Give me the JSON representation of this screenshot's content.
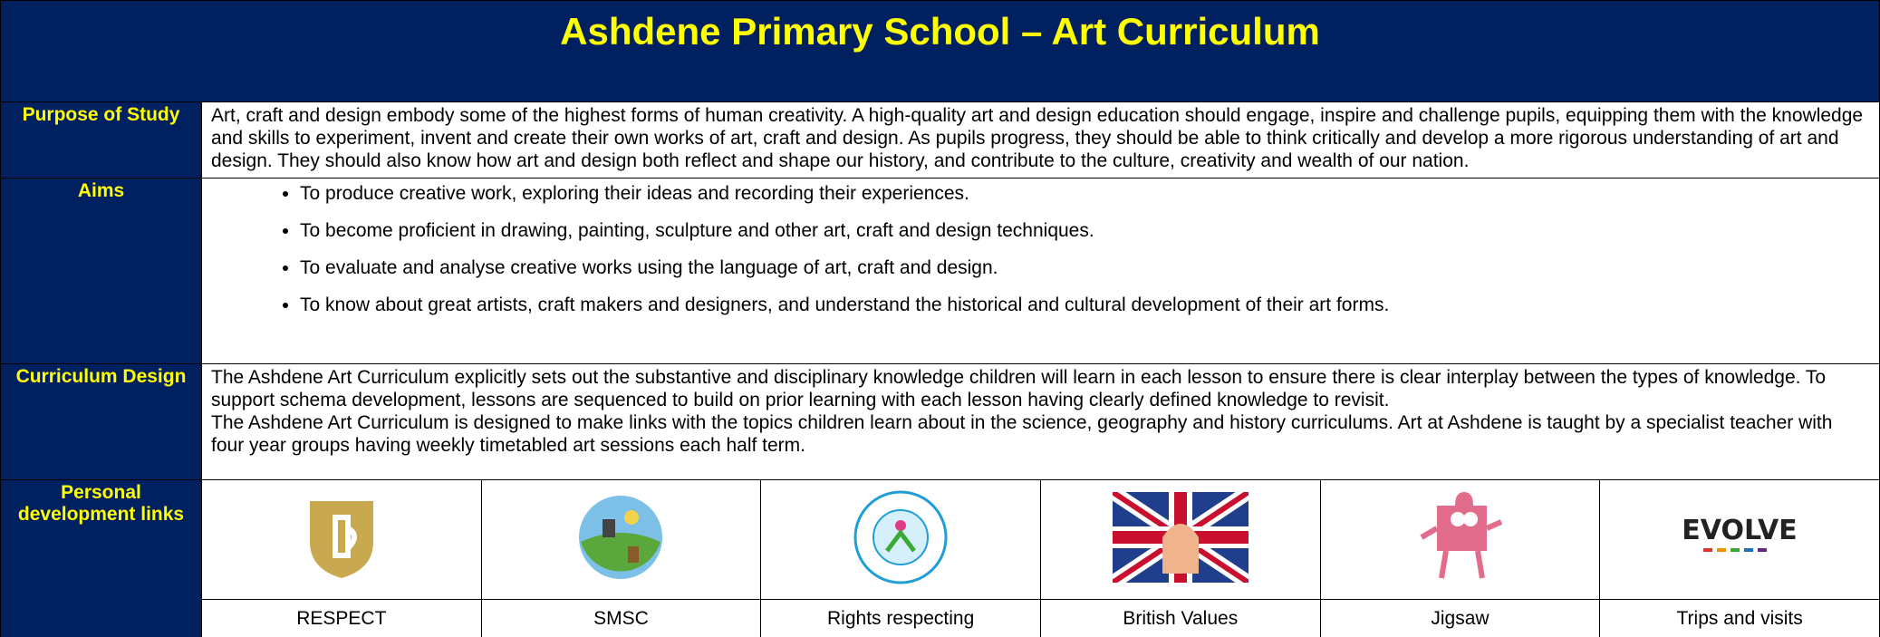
{
  "header": {
    "title": "Ashdene Primary School – Art Curriculum"
  },
  "purpose": {
    "label": "Purpose of Study",
    "text": "Art, craft and design embody some of the highest forms of human creativity. A high-quality art and design education should engage, inspire and challenge pupils, equipping them with the knowledge and skills to experiment, invent and create their own works of art, craft and design. As pupils progress, they should be able to think critically and develop a more rigorous understanding of art and design. They should also know how art and design both reflect and shape our history, and contribute to the culture, creativity and wealth of our nation."
  },
  "aims": {
    "label": "Aims",
    "items": [
      "To produce creative work, exploring their ideas and recording their experiences.",
      "To become proficient in drawing, painting, sculpture and other art, craft and design techniques.",
      "To evaluate and analyse creative works using the language of art, craft and design.",
      "To know about great artists, craft makers and designers, and understand the historical and cultural development of their art forms."
    ]
  },
  "design": {
    "label": "Curriculum Design",
    "paragraphs": [
      "The Ashdene Art Curriculum explicitly sets out the substantive and disciplinary knowledge children will learn in each lesson to ensure there is clear interplay between the types of knowledge. To support schema development, lessons are sequenced to build on prior learning with each lesson having clearly defined knowledge to revisit.",
      "The Ashdene Art Curriculum is designed to make links with the topics children learn about in the science, geography and history curriculums. Art at Ashdene is taught by a specialist teacher with four year groups having weekly timetabled art sessions each half term."
    ]
  },
  "personal": {
    "label": "Personal development links",
    "captions": [
      "RESPECT",
      "SMSC",
      "Rights respecting",
      "British Values",
      "Jigsaw",
      "Trips and visits"
    ],
    "logo_text": "EVOLVE"
  }
}
